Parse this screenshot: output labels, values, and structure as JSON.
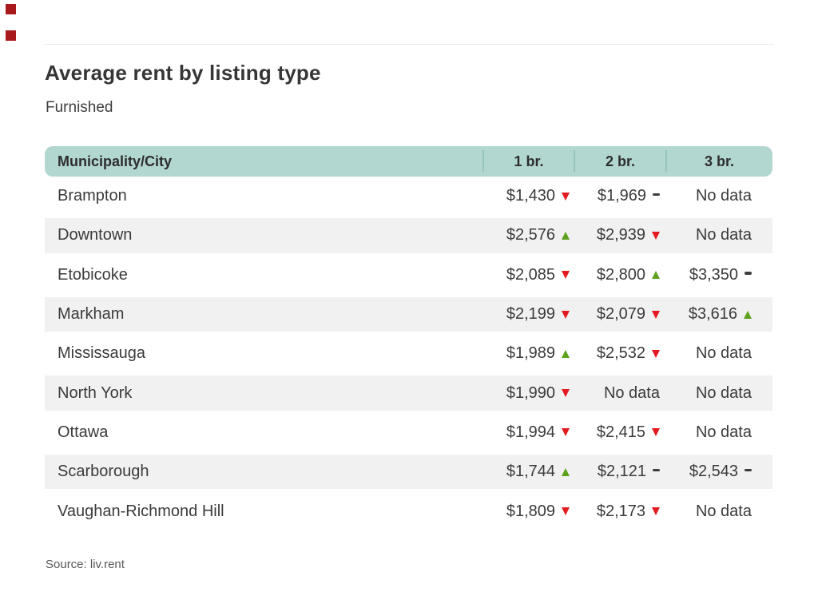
{
  "page": {
    "title": "Average rent by listing type",
    "subtitle": "Furnished",
    "source": "Source: liv.rent"
  },
  "table": {
    "columns": [
      "Municipality/City",
      "1 br.",
      "2 br.",
      "3 br."
    ],
    "rows": [
      {
        "city": "Brampton",
        "values": [
          {
            "text": "$1,430",
            "trend": "down"
          },
          {
            "text": "$1,969",
            "trend": "flat"
          },
          {
            "text": "No data",
            "trend": "none"
          }
        ]
      },
      {
        "city": "Downtown",
        "values": [
          {
            "text": "$2,576",
            "trend": "up"
          },
          {
            "text": "$2,939",
            "trend": "down"
          },
          {
            "text": "No data",
            "trend": "none"
          }
        ]
      },
      {
        "city": "Etobicoke",
        "values": [
          {
            "text": "$2,085",
            "trend": "down"
          },
          {
            "text": "$2,800",
            "trend": "up"
          },
          {
            "text": "$3,350",
            "trend": "flat"
          }
        ]
      },
      {
        "city": "Markham",
        "values": [
          {
            "text": "$2,199",
            "trend": "down"
          },
          {
            "text": "$2,079",
            "trend": "down"
          },
          {
            "text": "$3,616",
            "trend": "up"
          }
        ]
      },
      {
        "city": "Mississauga",
        "values": [
          {
            "text": "$1,989",
            "trend": "up"
          },
          {
            "text": "$2,532",
            "trend": "down"
          },
          {
            "text": "No data",
            "trend": "none"
          }
        ]
      },
      {
        "city": "North York",
        "values": [
          {
            "text": "$1,990",
            "trend": "down"
          },
          {
            "text": "No data",
            "trend": "none"
          },
          {
            "text": "No data",
            "trend": "none"
          }
        ]
      },
      {
        "city": "Ottawa",
        "values": [
          {
            "text": "$1,994",
            "trend": "down"
          },
          {
            "text": "$2,415",
            "trend": "down"
          },
          {
            "text": "No data",
            "trend": "none"
          }
        ]
      },
      {
        "city": "Scarborough",
        "values": [
          {
            "text": "$1,744",
            "trend": "up"
          },
          {
            "text": "$2,121",
            "trend": "flat"
          },
          {
            "text": "$2,543",
            "trend": "flat"
          }
        ]
      },
      {
        "city": "Vaughan-Richmond Hill",
        "values": [
          {
            "text": "$1,809",
            "trend": "down"
          },
          {
            "text": "$2,173",
            "trend": "down"
          },
          {
            "text": "No data",
            "trend": "none"
          }
        ]
      }
    ]
  },
  "chart_data": {
    "type": "table",
    "title": "Average rent by listing type",
    "subtitle": "Furnished",
    "source": "Source: liv.rent",
    "columns": [
      "Municipality/City",
      "1 br.",
      "2 br.",
      "3 br."
    ],
    "trend_legend": {
      "up": "green up-triangle (rent increased)",
      "down": "red down-triangle (rent decreased)",
      "flat": "dark dash (no change)",
      "none": "no data"
    },
    "rows": [
      {
        "municipality": "Brampton",
        "br1": 1430,
        "br1_trend": "down",
        "br2": 1969,
        "br2_trend": "flat",
        "br3": null,
        "br3_trend": "none"
      },
      {
        "municipality": "Downtown",
        "br1": 2576,
        "br1_trend": "up",
        "br2": 2939,
        "br2_trend": "down",
        "br3": null,
        "br3_trend": "none"
      },
      {
        "municipality": "Etobicoke",
        "br1": 2085,
        "br1_trend": "down",
        "br2": 2800,
        "br2_trend": "up",
        "br3": 3350,
        "br3_trend": "flat"
      },
      {
        "municipality": "Markham",
        "br1": 2199,
        "br1_trend": "down",
        "br2": 2079,
        "br2_trend": "down",
        "br3": 3616,
        "br3_trend": "up"
      },
      {
        "municipality": "Mississauga",
        "br1": 1989,
        "br1_trend": "up",
        "br2": 2532,
        "br2_trend": "down",
        "br3": null,
        "br3_trend": "none"
      },
      {
        "municipality": "North York",
        "br1": 1990,
        "br1_trend": "down",
        "br2": null,
        "br2_trend": "none",
        "br3": null,
        "br3_trend": "none"
      },
      {
        "municipality": "Ottawa",
        "br1": 1994,
        "br1_trend": "down",
        "br2": 2415,
        "br2_trend": "down",
        "br3": null,
        "br3_trend": "none"
      },
      {
        "municipality": "Scarborough",
        "br1": 1744,
        "br1_trend": "up",
        "br2": 2121,
        "br2_trend": "flat",
        "br3": 2543,
        "br3_trend": "flat"
      },
      {
        "municipality": "Vaughan-Richmond Hill",
        "br1": 1809,
        "br1_trend": "down",
        "br2": 2173,
        "br2_trend": "down",
        "br3": null,
        "br3_trend": "none"
      }
    ]
  },
  "colors": {
    "header_bg": "#b2d6d0",
    "header_divider": "#96c5bc",
    "row_alt": "#f1f1f1",
    "trend_up": "#5ea11c",
    "trend_down": "#e31a1f",
    "trend_flat": "#3d3d3d",
    "brand_square": "#a8191e",
    "text": "#3b3b3b"
  }
}
